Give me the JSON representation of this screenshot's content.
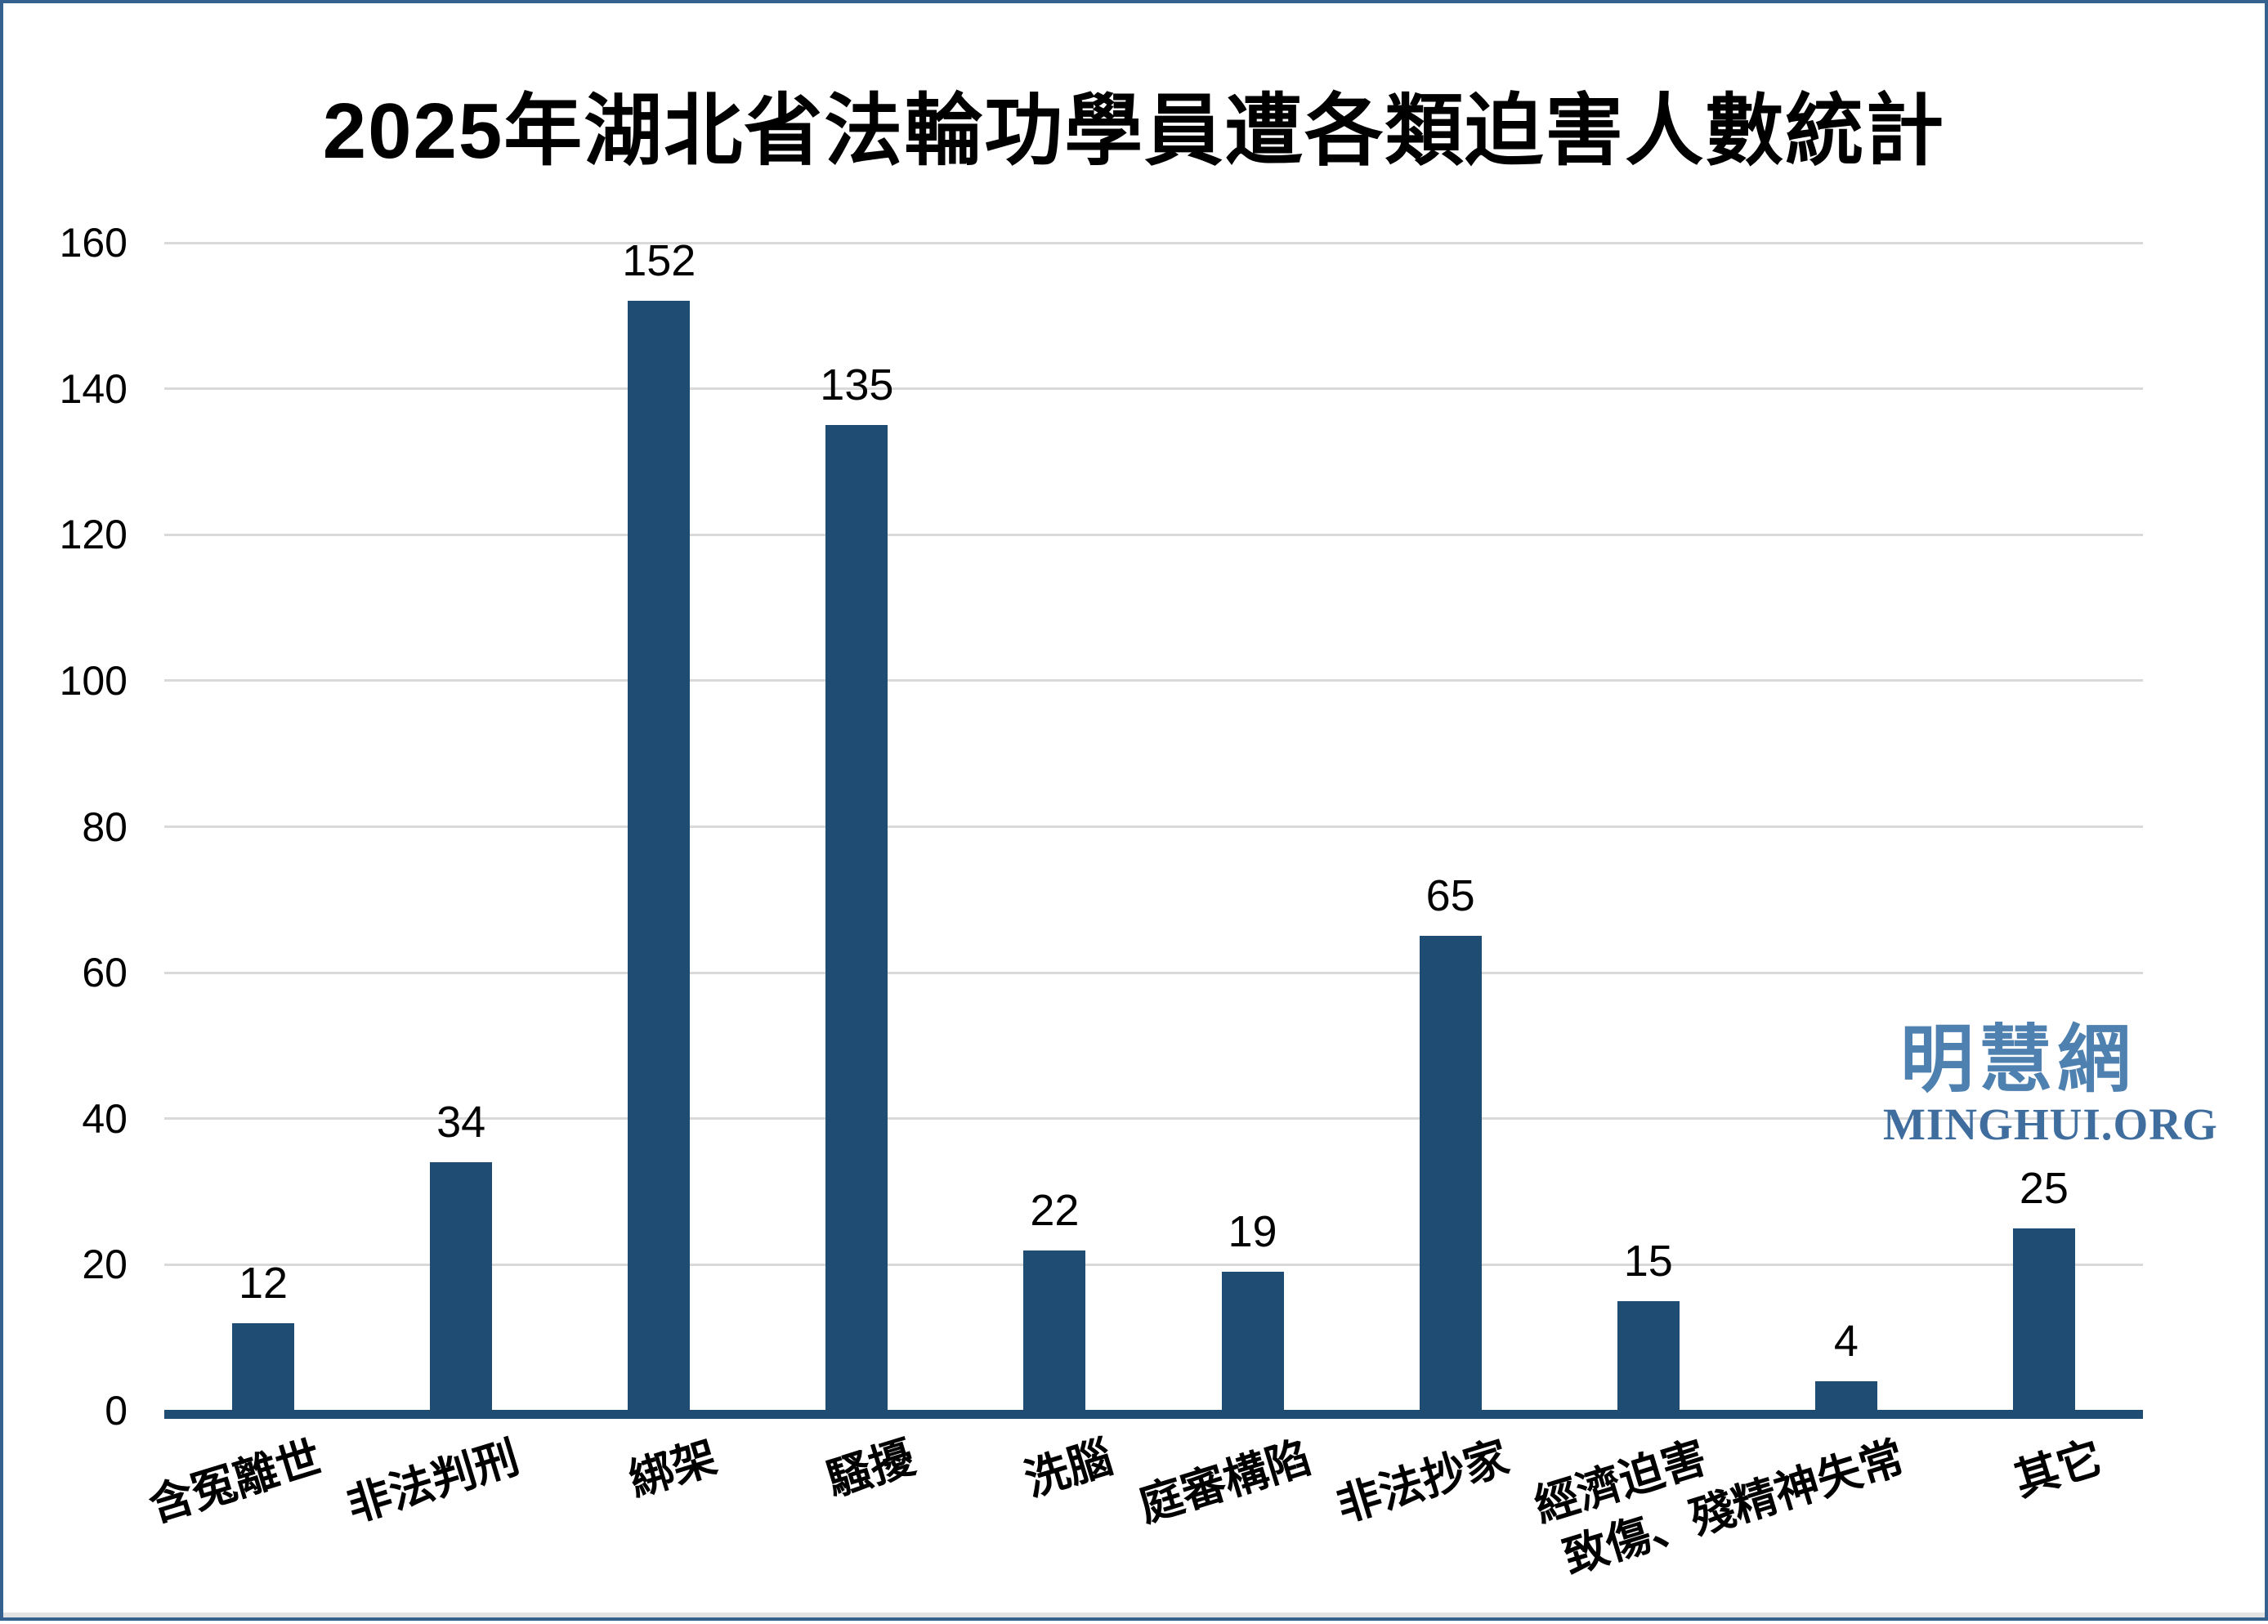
{
  "title": "2025年湖北省法輪功學員遭各類迫害人數統計",
  "watermark": {
    "cjk": "明慧網",
    "latin": "MINGHUI.ORG",
    "cjk_color": "#4E80B0",
    "latin_color": "#3F6E9E"
  },
  "chart_data": {
    "type": "bar",
    "title": "2025年湖北省法輪功學員遭各類迫害人數統計",
    "categories": [
      "含冤離世",
      "非法判刑",
      "綁架",
      "騷擾",
      "洗腦",
      "庭審構陷",
      "非法抄家",
      "經濟迫害",
      "致傷、殘精神失常",
      "其它"
    ],
    "values": [
      12,
      34,
      152,
      135,
      22,
      19,
      65,
      15,
      4,
      25
    ],
    "xlabel": "",
    "ylabel": "",
    "ylim": [
      0,
      160
    ],
    "ytick_step": 20,
    "yticks": [
      0,
      20,
      40,
      60,
      80,
      100,
      120,
      140,
      160
    ],
    "grid": true,
    "legend_position": "none",
    "bar_color": "#1F4C73",
    "axis_color": "#1F4C73",
    "gridline_color": "#D9D9D9",
    "value_label_color": "#000000",
    "frame_border_color": "#34618E"
  }
}
